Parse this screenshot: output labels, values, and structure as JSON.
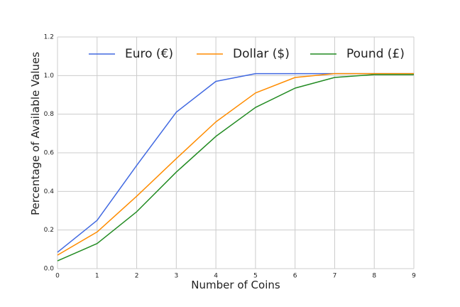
{
  "chart_data": {
    "type": "line",
    "xlabel": "Number of Coins",
    "ylabel": "Percentage of Available Values",
    "x": [
      0,
      1,
      2,
      3,
      4,
      5,
      6,
      7,
      8,
      9
    ],
    "xlim": [
      0,
      9
    ],
    "ylim": [
      0.0,
      1.2
    ],
    "xticks": [
      "0",
      "1",
      "2",
      "3",
      "4",
      "5",
      "6",
      "7",
      "8",
      "9"
    ],
    "yticks": [
      "0.0",
      "0.2",
      "0.4",
      "0.6",
      "0.8",
      "1.0",
      "1.2"
    ],
    "grid": true,
    "legend_position": "top",
    "series": [
      {
        "name": "Euro (€)",
        "color": "#4169e1",
        "values": [
          0.085,
          0.25,
          0.535,
          0.81,
          0.97,
          1.01,
          1.01,
          1.01,
          1.01,
          1.01
        ]
      },
      {
        "name": "Dollar ($)",
        "color": "#ff8c00",
        "values": [
          0.07,
          0.19,
          0.375,
          0.57,
          0.76,
          0.91,
          0.99,
          1.01,
          1.01,
          1.01
        ]
      },
      {
        "name": "Pound (£)",
        "color": "#228b22",
        "values": [
          0.04,
          0.13,
          0.295,
          0.5,
          0.685,
          0.835,
          0.935,
          0.99,
          1.005,
          1.005
        ]
      }
    ]
  }
}
